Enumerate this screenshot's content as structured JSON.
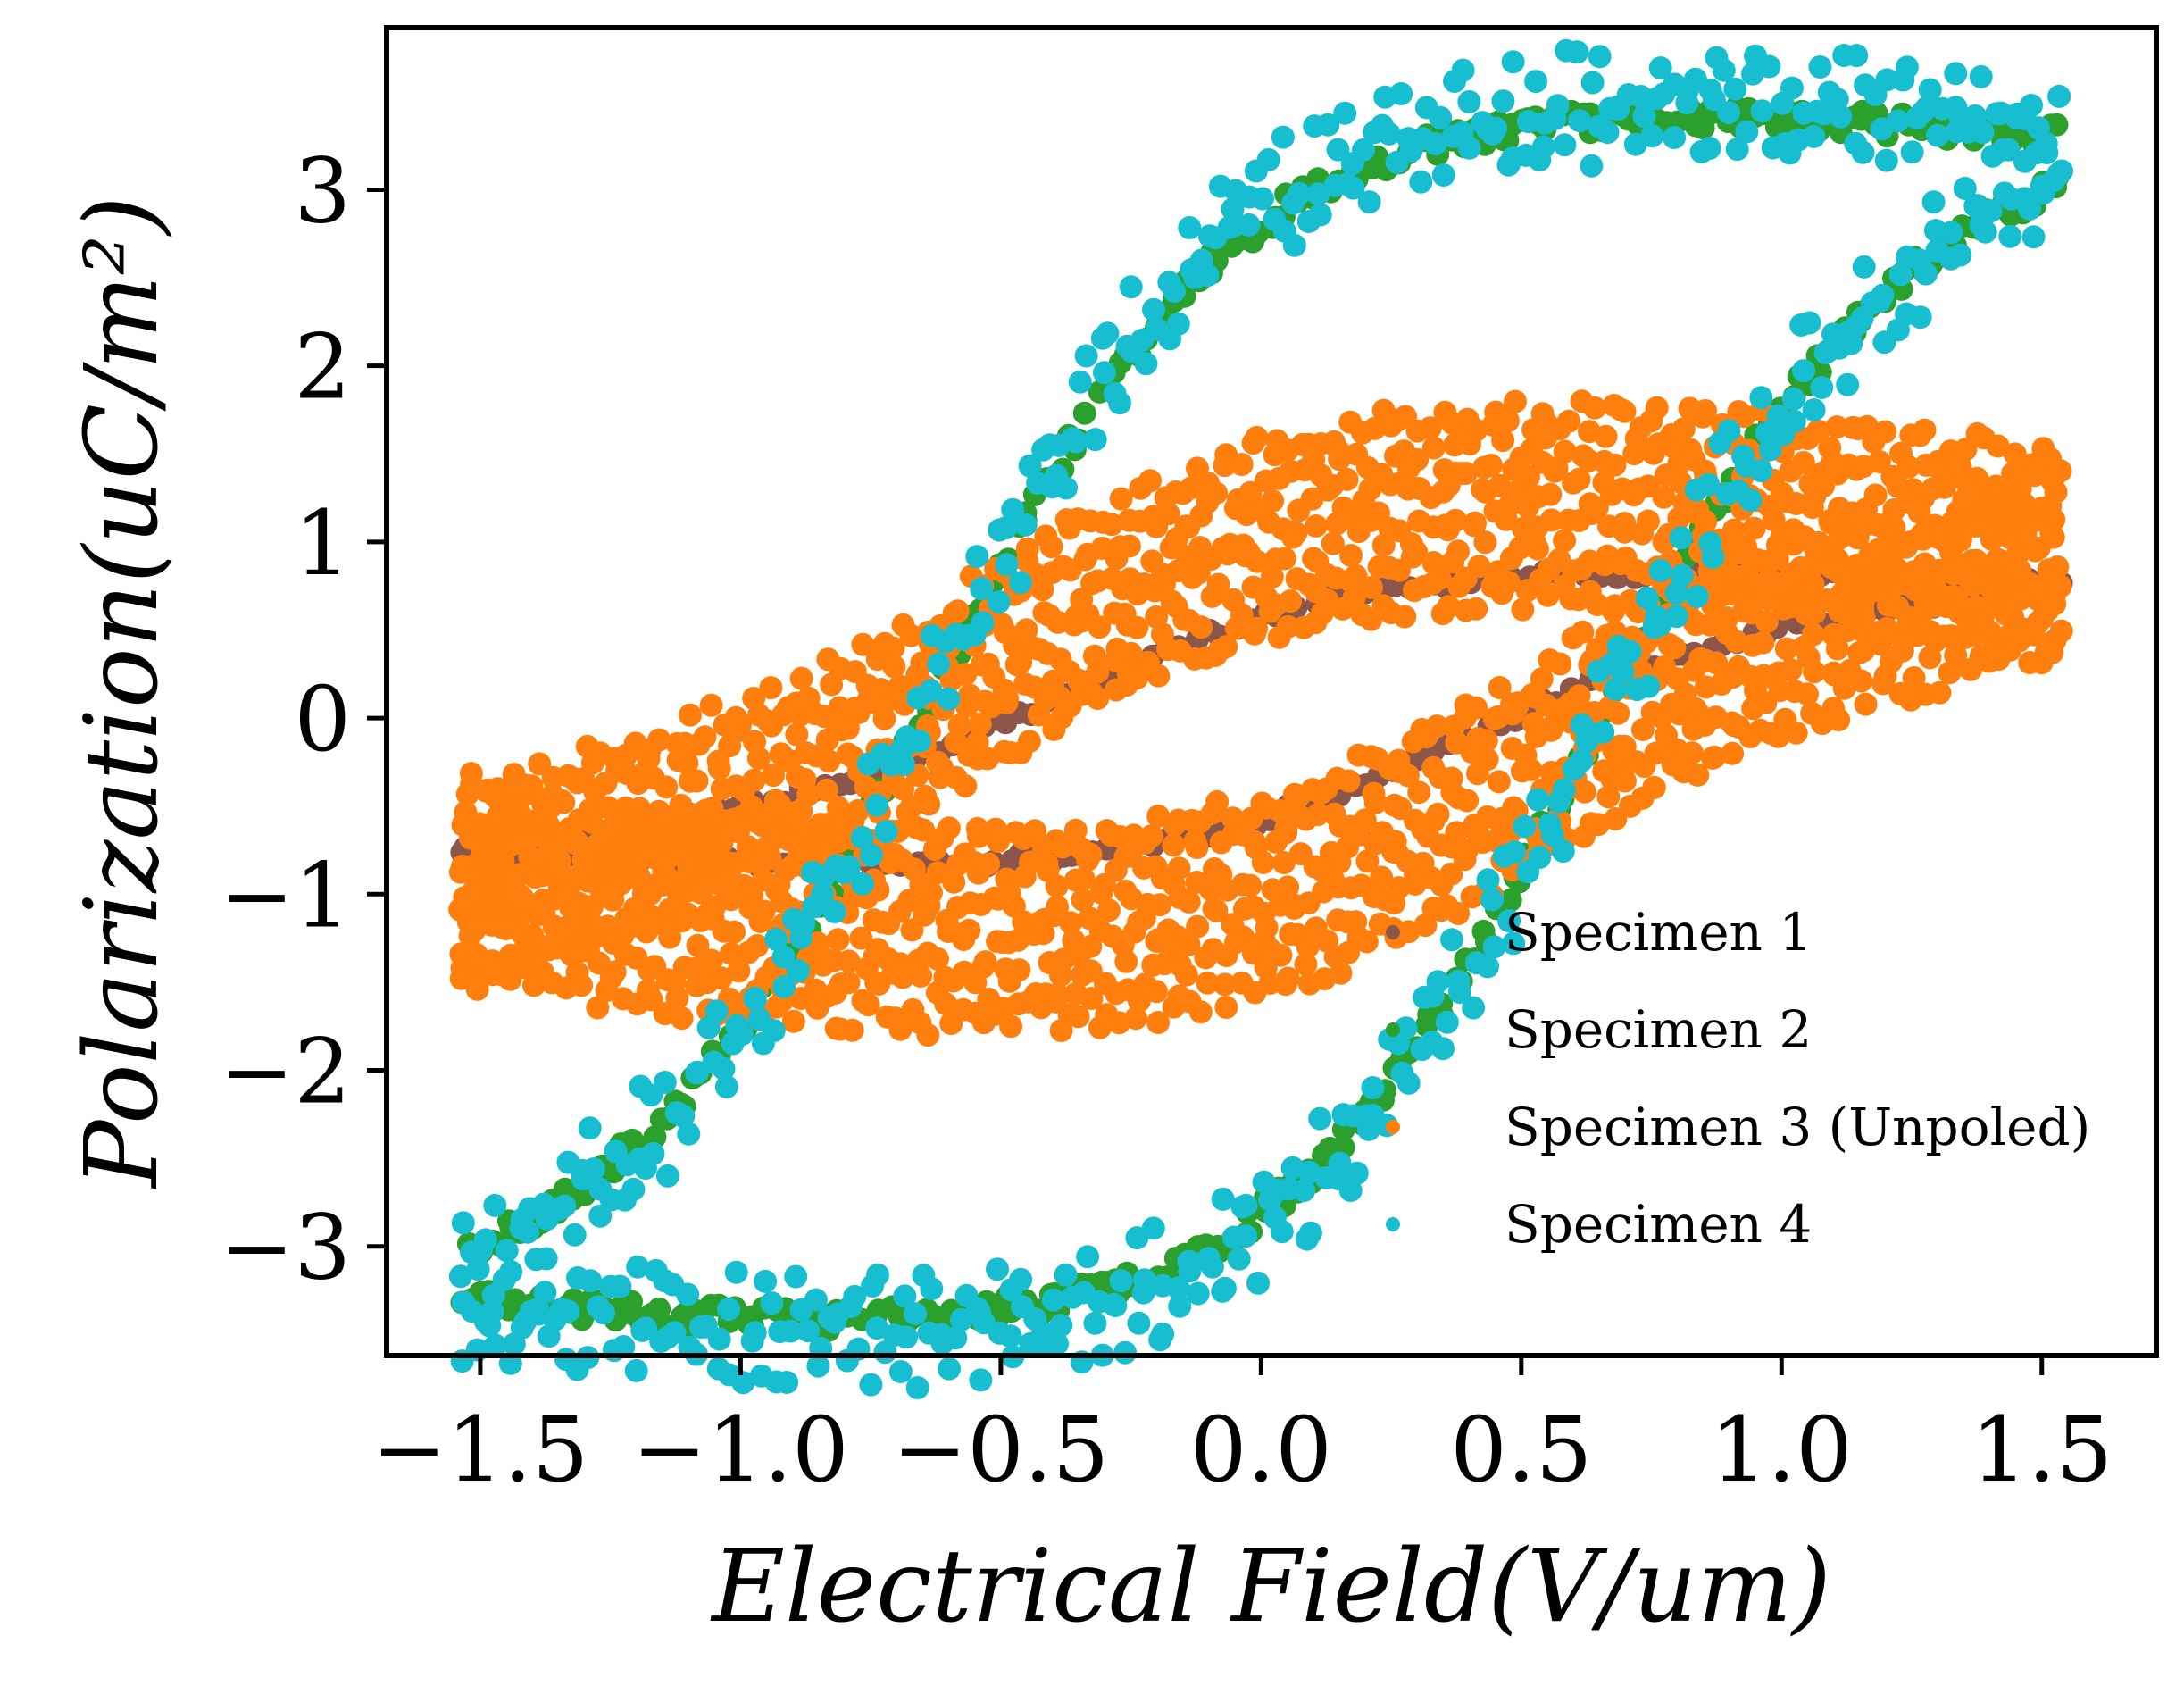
{
  "chart_data": {
    "type": "scatter",
    "title": "",
    "xlabel": "Electrical Field(V/um)",
    "ylabel": "Polarization(uC/m²)",
    "xlim": [
      -1.68,
      1.72
    ],
    "ylim": [
      -3.62,
      3.92
    ],
    "xticks": [
      -1.5,
      -1.0,
      -0.5,
      0.0,
      0.5,
      1.0,
      1.5
    ],
    "xtick_labels": [
      "−1.5",
      "−1.0",
      "−0.5",
      "0.0",
      "0.5",
      "1.0",
      "1.5"
    ],
    "yticks": [
      -3,
      -2,
      -1,
      0,
      1,
      2,
      3
    ],
    "ytick_labels": [
      "−3",
      "−2",
      "−1",
      "0",
      "1",
      "2",
      "3"
    ],
    "grid": false,
    "legend_position": "lower-right",
    "series": [
      {
        "name": "Specimen 1",
        "color": "#8c564b",
        "loop": {
          "e_max": 1.53,
          "p_sat": 0.75,
          "p_r": 0.14,
          "coercive": 0.38,
          "n": 120,
          "jitter": 0.03,
          "band": 0.03,
          "seed": 11
        }
      },
      {
        "name": "Specimen 2",
        "color": "#2ca02c",
        "loop": {
          "e_max": 1.53,
          "p_sat": 3.3,
          "p_r": 0.22,
          "coercive": 0.62,
          "n": 240,
          "jitter": 0.07,
          "band": 0.08,
          "seed": 23
        }
      },
      {
        "name": "Specimen 3 (Unpoled)",
        "color": "#ff7f0e",
        "loop": {
          "e_max": 1.53,
          "p_sat": 0.95,
          "p_r": 0.35,
          "coercive": 0.5,
          "n": 160,
          "jitter": 0.1,
          "band": 0.5,
          "seed": 37
        }
      },
      {
        "name": "Specimen 4",
        "color": "#17becf",
        "loop": {
          "e_max": 1.53,
          "p_sat": 3.35,
          "p_r": 0.25,
          "coercive": 0.62,
          "n": 150,
          "jitter": 0.22,
          "band": 0.12,
          "seed": 53
        }
      }
    ]
  }
}
